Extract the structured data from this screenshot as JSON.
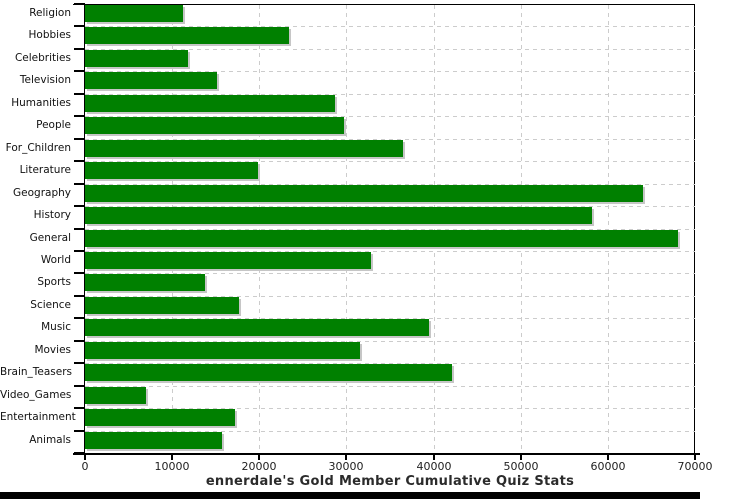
{
  "chart_data": {
    "type": "bar",
    "orientation": "horizontal",
    "title": "ennerdale's Gold Member Cumulative Quiz Stats",
    "categories": [
      "Religion",
      "Hobbies",
      "Celebrities",
      "Television",
      "Humanities",
      "People",
      "For_Children",
      "Literature",
      "Geography",
      "History",
      "General",
      "World",
      "Sports",
      "Science",
      "Music",
      "Movies",
      "Brain_Teasers",
      "Video_Games",
      "Entertainment",
      "Animals"
    ],
    "values": [
      11200,
      23400,
      11800,
      15100,
      28700,
      29700,
      36500,
      19900,
      64000,
      58200,
      68000,
      32800,
      13800,
      17700,
      39500,
      31600,
      42100,
      7000,
      17200,
      15700
    ],
    "xlim": [
      0,
      70000
    ],
    "x_ticks": [
      0,
      10000,
      20000,
      30000,
      40000,
      50000,
      60000,
      70000
    ],
    "x_tick_labels": [
      "0",
      "10000",
      "20000",
      "30000",
      "40000",
      "50000",
      "60000",
      "70000"
    ],
    "xlabel": "",
    "ylabel": "",
    "grid": "dashed",
    "legend": "none",
    "colors": {
      "bar": "#008000",
      "bar_shadow": "#c6c6c6",
      "grid": "#cccccc",
      "axis": "#000000",
      "title_text": "#2b2b2b",
      "tick_text": "#222222",
      "background": "#ffffff",
      "bottom_strip": "#000000"
    }
  }
}
